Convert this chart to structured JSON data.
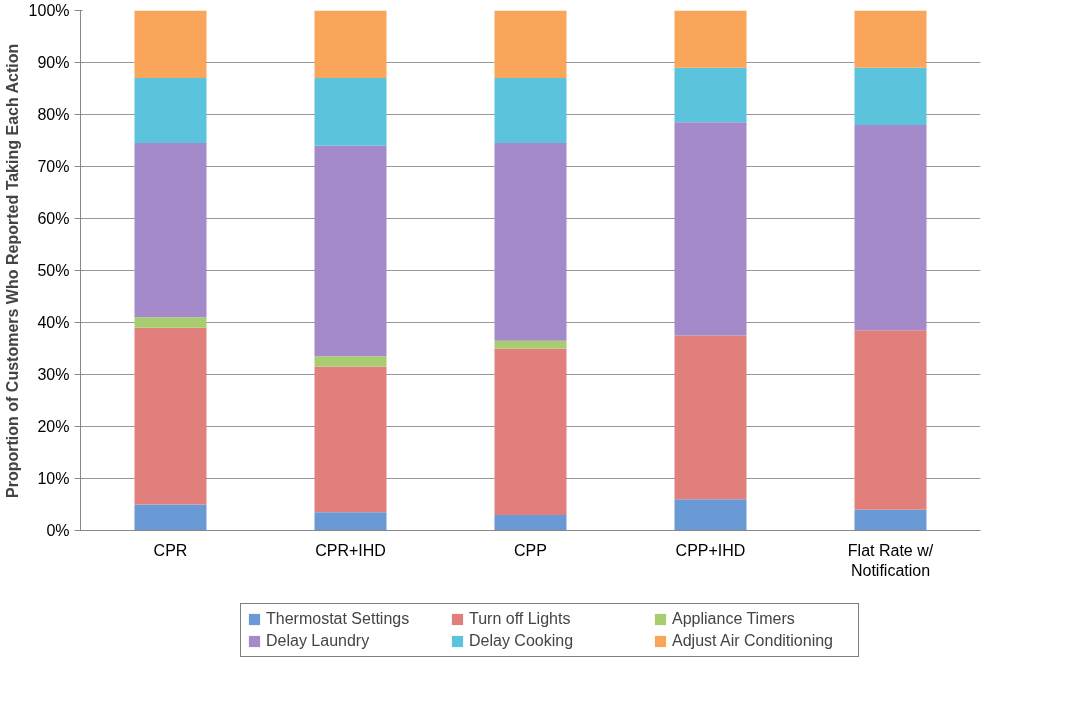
{
  "chart_data": {
    "type": "bar",
    "stacked": true,
    "ylabel": "Proportion of Customers Who Reported Taking Each Action",
    "categories": [
      "CPR",
      "CPR+IHD",
      "CPP",
      "CPP+IHD",
      "Flat Rate w/ Notification"
    ],
    "series": [
      {
        "name": "Thermostat Settings",
        "color": "#6a9ad6",
        "values": [
          5,
          3.5,
          3,
          6,
          4
        ]
      },
      {
        "name": "Turn off Lights",
        "color": "#e07f7c",
        "values": [
          34,
          28,
          32,
          31.5,
          34.5
        ]
      },
      {
        "name": "Appliance Timers",
        "color": "#a8cd70",
        "values": [
          2,
          2,
          1.5,
          0,
          0
        ]
      },
      {
        "name": "Delay Laundry",
        "color": "#a48ac8",
        "values": [
          33.5,
          40.5,
          38,
          41,
          39.5
        ]
      },
      {
        "name": "Delay Cooking",
        "color": "#5cc3dd",
        "values": [
          12.5,
          13,
          12.5,
          10.5,
          11
        ]
      },
      {
        "name": "Adjust Air Conditioning",
        "color": "#f9a55a",
        "values": [
          13,
          13,
          13,
          11,
          11
        ]
      }
    ],
    "ylim": [
      0,
      100
    ],
    "yticks": [
      {
        "value": 0,
        "label": "0%"
      },
      {
        "value": 10,
        "label": "10%"
      },
      {
        "value": 20,
        "label": "20%"
      },
      {
        "value": 30,
        "label": "30%"
      },
      {
        "value": 40,
        "label": "40%"
      },
      {
        "value": 50,
        "label": "50%"
      },
      {
        "value": 60,
        "label": "60%"
      },
      {
        "value": 70,
        "label": "70%"
      },
      {
        "value": 80,
        "label": "80%"
      },
      {
        "value": 90,
        "label": "90%"
      },
      {
        "value": 100,
        "label": "100%"
      }
    ],
    "grid": "y",
    "legend": "bottom"
  }
}
